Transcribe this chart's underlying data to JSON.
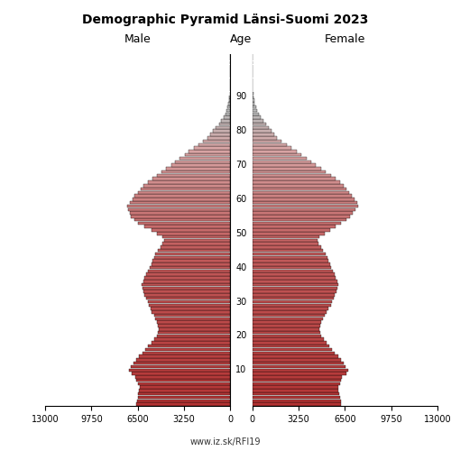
{
  "title": "Demographic Pyramid Länsi-Suomi 2023",
  "male_label": "Male",
  "female_label": "Female",
  "age_label": "Age",
  "url": "www.iz.sk/RFI19",
  "xlim": 13000,
  "xticks": [
    0,
    3250,
    6500,
    9750,
    13000
  ],
  "age_ticks": [
    10,
    20,
    30,
    40,
    50,
    60,
    70,
    80,
    90
  ],
  "male": [
    6600,
    6550,
    6500,
    6450,
    6400,
    6350,
    6500,
    6600,
    6650,
    6900,
    7100,
    6950,
    6800,
    6600,
    6400,
    6150,
    5950,
    5750,
    5550,
    5350,
    5150,
    5050,
    5000,
    5050,
    5150,
    5250,
    5350,
    5500,
    5600,
    5700,
    5800,
    5900,
    6000,
    6100,
    6150,
    6200,
    6100,
    6000,
    5900,
    5800,
    5650,
    5550,
    5450,
    5350,
    5250,
    5100,
    4900,
    4750,
    4650,
    4750,
    5150,
    5550,
    6050,
    6450,
    6750,
    6950,
    7050,
    7150,
    7250,
    7050,
    6850,
    6700,
    6500,
    6300,
    6100,
    5800,
    5450,
    5150,
    4800,
    4500,
    4150,
    3850,
    3550,
    3200,
    2900,
    2550,
    2250,
    1900,
    1600,
    1400,
    1200,
    1000,
    800,
    620,
    480,
    360,
    260,
    180,
    130,
    85,
    55,
    35,
    22,
    13,
    8,
    4,
    2,
    1,
    1,
    0,
    0,
    0,
    0
  ],
  "female": [
    6250,
    6200,
    6150,
    6100,
    6050,
    6000,
    6150,
    6250,
    6300,
    6600,
    6700,
    6550,
    6400,
    6200,
    6000,
    5800,
    5600,
    5400,
    5200,
    5000,
    4850,
    4750,
    4700,
    4750,
    4850,
    4950,
    5050,
    5200,
    5350,
    5500,
    5600,
    5700,
    5800,
    5900,
    5950,
    6050,
    5950,
    5850,
    5750,
    5650,
    5550,
    5450,
    5350,
    5250,
    5150,
    4950,
    4800,
    4650,
    4600,
    4700,
    5050,
    5450,
    5850,
    6250,
    6600,
    6850,
    7050,
    7250,
    7450,
    7350,
    7150,
    7000,
    6800,
    6600,
    6400,
    6150,
    5850,
    5500,
    5150,
    4800,
    4450,
    4100,
    3800,
    3450,
    3100,
    2750,
    2450,
    2050,
    1750,
    1550,
    1350,
    1150,
    950,
    750,
    600,
    450,
    330,
    240,
    165,
    110,
    72,
    46,
    28,
    17,
    10,
    5,
    3,
    2,
    1,
    0,
    0,
    0,
    0
  ],
  "color_young": "#c0392b",
  "color_mid": "#e8a090",
  "color_old": "#cccccc",
  "color_vold": "#e8e8e8"
}
